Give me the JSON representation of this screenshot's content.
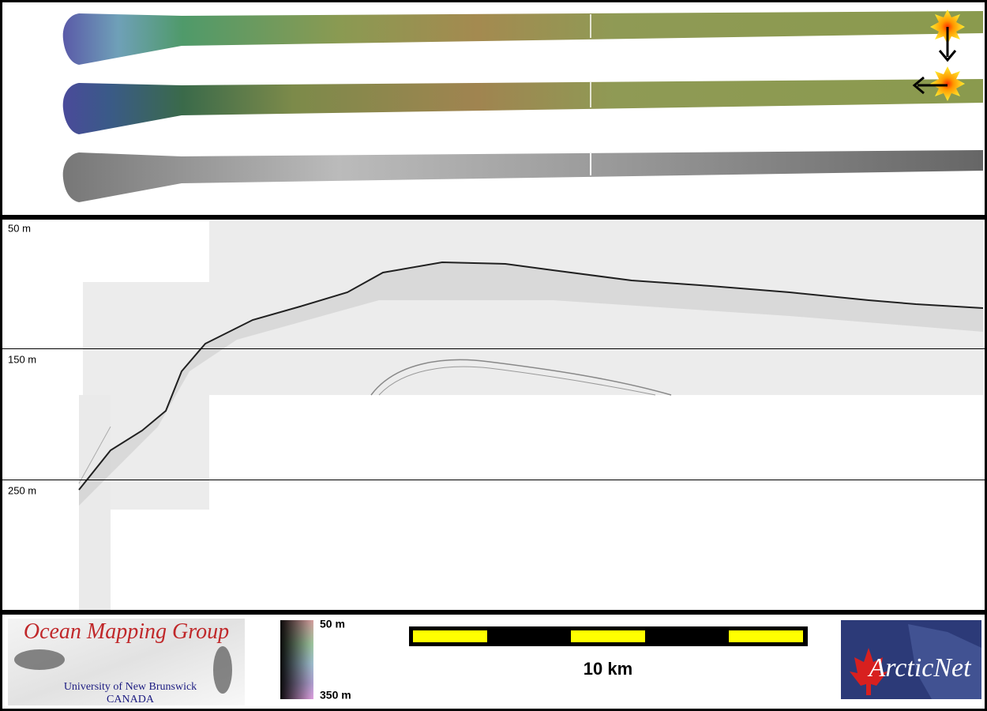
{
  "profile": {
    "depth_labels": [
      "50 m",
      "150 m",
      "250 m"
    ]
  },
  "footer": {
    "logo_omg": {
      "title": "Ocean Mapping Group",
      "university": "University of New Brunswick",
      "country": "CANADA"
    },
    "colorbar": {
      "top_label": "50 m",
      "bottom_label": "350 m"
    },
    "scale_bar": {
      "label": "10 km"
    },
    "logo_arcticnet": {
      "text": "ArcticNet"
    }
  }
}
